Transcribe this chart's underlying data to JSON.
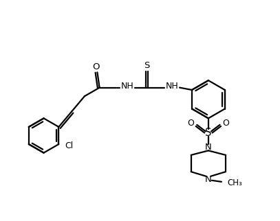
{
  "background_color": "#ffffff",
  "line_color": "#000000",
  "text_color": "#000000",
  "line_width": 1.6,
  "figsize": [
    4.07,
    3.22
  ],
  "dpi": 100,
  "xlim": [
    0,
    10
  ],
  "ylim": [
    0,
    7.9
  ]
}
